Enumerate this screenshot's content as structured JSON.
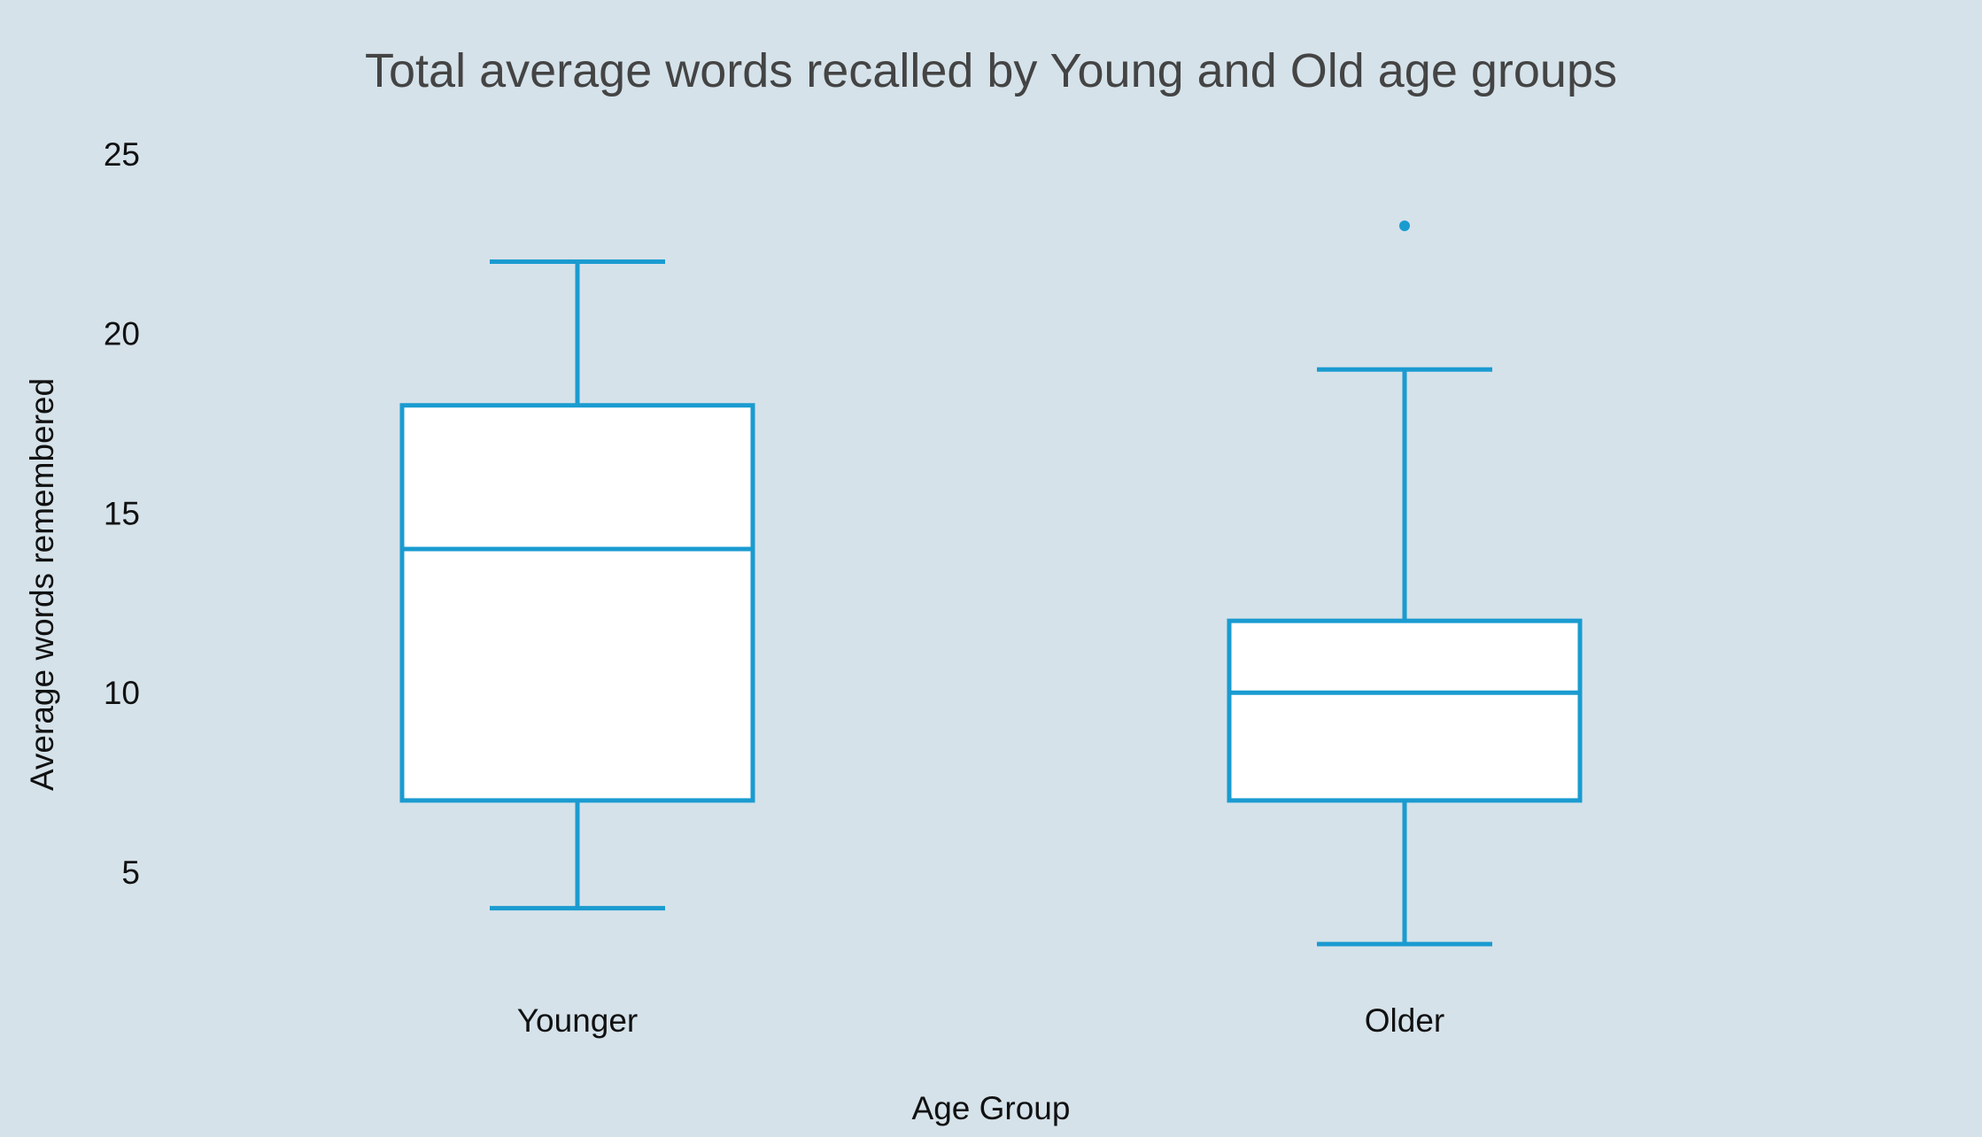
{
  "chart_data": {
    "type": "box",
    "title": "Total average words recalled by Young and Old age groups",
    "xlabel": "Age Group",
    "ylabel": "Average words remembered",
    "categories": [
      "Younger",
      "Older"
    ],
    "yticks": [
      5,
      10,
      15,
      20,
      25
    ],
    "ylim": [
      1.5,
      26.5
    ],
    "grid": false,
    "legend": "none",
    "colors": {
      "background": "#d5e2ea",
      "box_stroke": "#1a9bd0",
      "box_fill": "#ffffff"
    },
    "boxes": [
      {
        "category": "Younger",
        "whisker_low": 4,
        "q1": 7,
        "median": 14,
        "q3": 18,
        "whisker_high": 22,
        "outliers": []
      },
      {
        "category": "Older",
        "whisker_low": 3,
        "q1": 7,
        "median": 10,
        "q3": 12,
        "whisker_high": 19,
        "outliers": [
          23
        ]
      }
    ]
  }
}
